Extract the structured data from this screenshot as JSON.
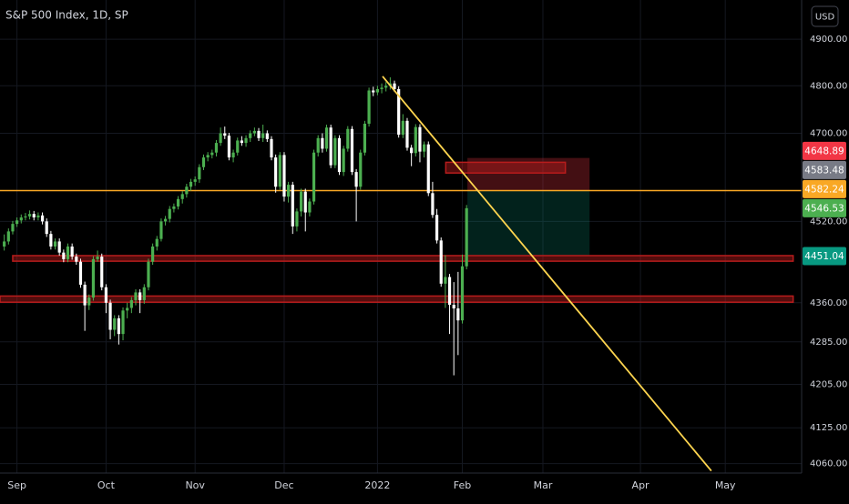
{
  "chart_data": {
    "type": "candlestick",
    "title": "S&P 500 Index, 1D, SP",
    "currency": "USD",
    "log_scale": true,
    "grid": true,
    "up_color": "#4caf50",
    "down_color": "#ffffff",
    "ohlc": [
      [
        4470,
        4494,
        4462,
        4480
      ],
      [
        4480,
        4506,
        4474,
        4500
      ],
      [
        4500,
        4521,
        4494,
        4515
      ],
      [
        4515,
        4528,
        4509,
        4522
      ],
      [
        4522,
        4534,
        4516,
        4528
      ],
      [
        4528,
        4537,
        4522,
        4530
      ],
      [
        4530,
        4542,
        4524,
        4535
      ],
      [
        4535,
        4541,
        4522,
        4528
      ],
      [
        4528,
        4538,
        4522,
        4532
      ],
      [
        4532,
        4538,
        4514,
        4520
      ],
      [
        4520,
        4526,
        4489,
        4495
      ],
      [
        4495,
        4501,
        4464,
        4470
      ],
      [
        4470,
        4486,
        4464,
        4480
      ],
      [
        4480,
        4486,
        4452,
        4458
      ],
      [
        4458,
        4464,
        4439,
        4445
      ],
      [
        4445,
        4476,
        4439,
        4470
      ],
      [
        4470,
        4476,
        4444,
        4450
      ],
      [
        4450,
        4456,
        4434,
        4440
      ],
      [
        4440,
        4446,
        4389,
        4395
      ],
      [
        4395,
        4401,
        4306,
        4355
      ],
      [
        4355,
        4376,
        4346,
        4370
      ],
      [
        4370,
        4451,
        4364,
        4445
      ],
      [
        4445,
        4462,
        4440,
        4450
      ],
      [
        4450,
        4456,
        4384,
        4390
      ],
      [
        4390,
        4396,
        4340,
        4360
      ],
      [
        4360,
        4366,
        4290,
        4308
      ],
      [
        4308,
        4336,
        4296,
        4330
      ],
      [
        4330,
        4336,
        4280,
        4300
      ],
      [
        4300,
        4351,
        4288,
        4345
      ],
      [
        4345,
        4360,
        4330,
        4350
      ],
      [
        4350,
        4371,
        4340,
        4365
      ],
      [
        4365,
        4386,
        4355,
        4380
      ],
      [
        4380,
        4386,
        4340,
        4365
      ],
      [
        4365,
        4396,
        4358,
        4390
      ],
      [
        4390,
        4446,
        4384,
        4440
      ],
      [
        4440,
        4476,
        4434,
        4470
      ],
      [
        4470,
        4491,
        4462,
        4485
      ],
      [
        4485,
        4526,
        4480,
        4520
      ],
      [
        4520,
        4531,
        4512,
        4525
      ],
      [
        4525,
        4551,
        4518,
        4545
      ],
      [
        4545,
        4556,
        4538,
        4550
      ],
      [
        4550,
        4571,
        4544,
        4565
      ],
      [
        4565,
        4581,
        4556,
        4575
      ],
      [
        4575,
        4596,
        4568,
        4590
      ],
      [
        4590,
        4606,
        4582,
        4600
      ],
      [
        4600,
        4611,
        4592,
        4605
      ],
      [
        4605,
        4636,
        4598,
        4630
      ],
      [
        4630,
        4656,
        4624,
        4650
      ],
      [
        4650,
        4661,
        4642,
        4655
      ],
      [
        4655,
        4666,
        4648,
        4660
      ],
      [
        4660,
        4686,
        4652,
        4680
      ],
      [
        4680,
        4712,
        4674,
        4700
      ],
      [
        4700,
        4714,
        4688,
        4695
      ],
      [
        4695,
        4701,
        4644,
        4650
      ],
      [
        4650,
        4666,
        4640,
        4660
      ],
      [
        4660,
        4691,
        4654,
        4685
      ],
      [
        4685,
        4694,
        4674,
        4680
      ],
      [
        4680,
        4696,
        4672,
        4690
      ],
      [
        4690,
        4706,
        4682,
        4700
      ],
      [
        4700,
        4712,
        4694,
        4705
      ],
      [
        4705,
        4711,
        4684,
        4690
      ],
      [
        4690,
        4718,
        4682,
        4700
      ],
      [
        4700,
        4706,
        4682,
        4688
      ],
      [
        4688,
        4694,
        4644,
        4650
      ],
      [
        4650,
        4656,
        4578,
        4590
      ],
      [
        4590,
        4661,
        4584,
        4655
      ],
      [
        4655,
        4661,
        4560,
        4570
      ],
      [
        4570,
        4600,
        4558,
        4594
      ],
      [
        4594,
        4600,
        4495,
        4510
      ],
      [
        4510,
        4546,
        4500,
        4540
      ],
      [
        4540,
        4586,
        4530,
        4580
      ],
      [
        4580,
        4586,
        4500,
        4538
      ],
      [
        4538,
        4566,
        4530,
        4560
      ],
      [
        4560,
        4666,
        4554,
        4660
      ],
      [
        4660,
        4696,
        4652,
        4690
      ],
      [
        4690,
        4700,
        4660,
        4668
      ],
      [
        4668,
        4718,
        4662,
        4712
      ],
      [
        4712,
        4718,
        4628,
        4634
      ],
      [
        4634,
        4696,
        4628,
        4690
      ],
      [
        4690,
        4696,
        4614,
        4620
      ],
      [
        4620,
        4674,
        4612,
        4668
      ],
      [
        4668,
        4715,
        4662,
        4709
      ],
      [
        4709,
        4715,
        4614,
        4620
      ],
      [
        4620,
        4626,
        4520,
        4590
      ],
      [
        4590,
        4666,
        4584,
        4660
      ],
      [
        4660,
        4726,
        4654,
        4720
      ],
      [
        4720,
        4796,
        4714,
        4790
      ],
      [
        4790,
        4798,
        4778,
        4786
      ],
      [
        4786,
        4800,
        4780,
        4793
      ],
      [
        4793,
        4805,
        4784,
        4796
      ],
      [
        4796,
        4808,
        4788,
        4800
      ],
      [
        4800,
        4818,
        4792,
        4805
      ],
      [
        4805,
        4811,
        4787,
        4793
      ],
      [
        4793,
        4799,
        4691,
        4697
      ],
      [
        4697,
        4740,
        4690,
        4726
      ],
      [
        4726,
        4732,
        4664,
        4670
      ],
      [
        4670,
        4676,
        4632,
        4659
      ],
      [
        4659,
        4719,
        4652,
        4713
      ],
      [
        4713,
        4719,
        4640,
        4662
      ],
      [
        4662,
        4683,
        4650,
        4677
      ],
      [
        4677,
        4683,
        4571,
        4577
      ],
      [
        4577,
        4600,
        4527,
        4533
      ],
      [
        4533,
        4545,
        4476,
        4482
      ],
      [
        4482,
        4488,
        4391,
        4397
      ],
      [
        4397,
        4453,
        4350,
        4410
      ],
      [
        4410,
        4416,
        4300,
        4356
      ],
      [
        4356,
        4400,
        4222,
        4349
      ],
      [
        4349,
        4420,
        4260,
        4326
      ],
      [
        4326,
        4454,
        4320,
        4431
      ],
      [
        4431,
        4553,
        4425,
        4546.53
      ]
    ],
    "xlim": [
      -1,
      188
    ],
    "xticks": [
      {
        "value": 3,
        "label": "Sep"
      },
      {
        "value": 24,
        "label": "Oct"
      },
      {
        "value": 45,
        "label": "Nov"
      },
      {
        "value": 66,
        "label": "Dec"
      },
      {
        "value": 88,
        "label": "2022"
      },
      {
        "value": 108,
        "label": "Feb"
      },
      {
        "value": 127,
        "label": "Mar"
      },
      {
        "value": 150,
        "label": "Apr"
      },
      {
        "value": 170,
        "label": "May"
      }
    ],
    "ylim": [
      4043,
      4986
    ],
    "yticks": [
      {
        "value": 4900,
        "label": "4900.00"
      },
      {
        "value": 4800,
        "label": "4800.00"
      },
      {
        "value": 4700,
        "label": "4700.00"
      },
      {
        "value": 4520,
        "label": "4520.00"
      },
      {
        "value": 4360,
        "label": "4360.00"
      },
      {
        "value": 4285,
        "label": "4285.00"
      },
      {
        "value": 4205,
        "label": "4205.00"
      },
      {
        "value": 4125,
        "label": "4125.00"
      },
      {
        "value": 4060,
        "label": "4060.00"
      }
    ],
    "price_labels": [
      {
        "value": 4648.89,
        "color": "#f23645"
      },
      {
        "value": 4583.48,
        "color": "#787b86"
      },
      {
        "value": 4582.24,
        "color": "#f9a825"
      },
      {
        "value": 4546.53,
        "color": "#4caf50"
      },
      {
        "value": 4451.04,
        "color": "#089981"
      }
    ],
    "hlines": [
      {
        "value": 4582.24,
        "color": "#f9a825"
      }
    ],
    "bands": [
      {
        "x": [
          2,
          186
        ],
        "y": [
          4441,
          4452
        ],
        "color": "#b71c1c"
      },
      {
        "x": [
          -1,
          186
        ],
        "y": [
          4361,
          4373
        ],
        "color": "#b71c1c"
      },
      {
        "x": [
          104.1,
          132.3
        ],
        "y": [
          4618,
          4640
        ],
        "color": "#b71c1c"
      }
    ],
    "trendline": {
      "x": [
        89.2,
        166.7
      ],
      "y": [
        4820,
        4047
      ],
      "color": "#ffd54f"
    },
    "position": {
      "x": [
        109.2,
        138
      ],
      "stop": 4648.89,
      "entry": 4582.24,
      "target": 4451.04
    }
  }
}
